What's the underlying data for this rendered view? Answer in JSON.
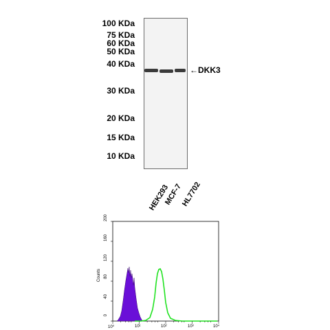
{
  "western_blot": {
    "markers": [
      "100 KDa",
      "75 KDa",
      "60 KDa",
      "50 KDa",
      "40 KDa",
      "30 KDa",
      "20 KDa",
      "15 KDa",
      "10 KDa"
    ],
    "target_label": "←DKK3",
    "lanes": [
      "HEK293",
      "MCF-7",
      "HL7702"
    ]
  },
  "flow_cytometry": {
    "y_axis_label": "Counts",
    "y_ticks": [
      "0",
      "40",
      "80",
      "120",
      "160",
      "200"
    ],
    "x_ticks": [
      "10⁰",
      "10¹",
      "10²",
      "10³",
      "10⁴"
    ],
    "colors": {
      "control_fill": "#6a0fd8",
      "sample_line": "#1fe21f",
      "axis": "#000000"
    }
  }
}
